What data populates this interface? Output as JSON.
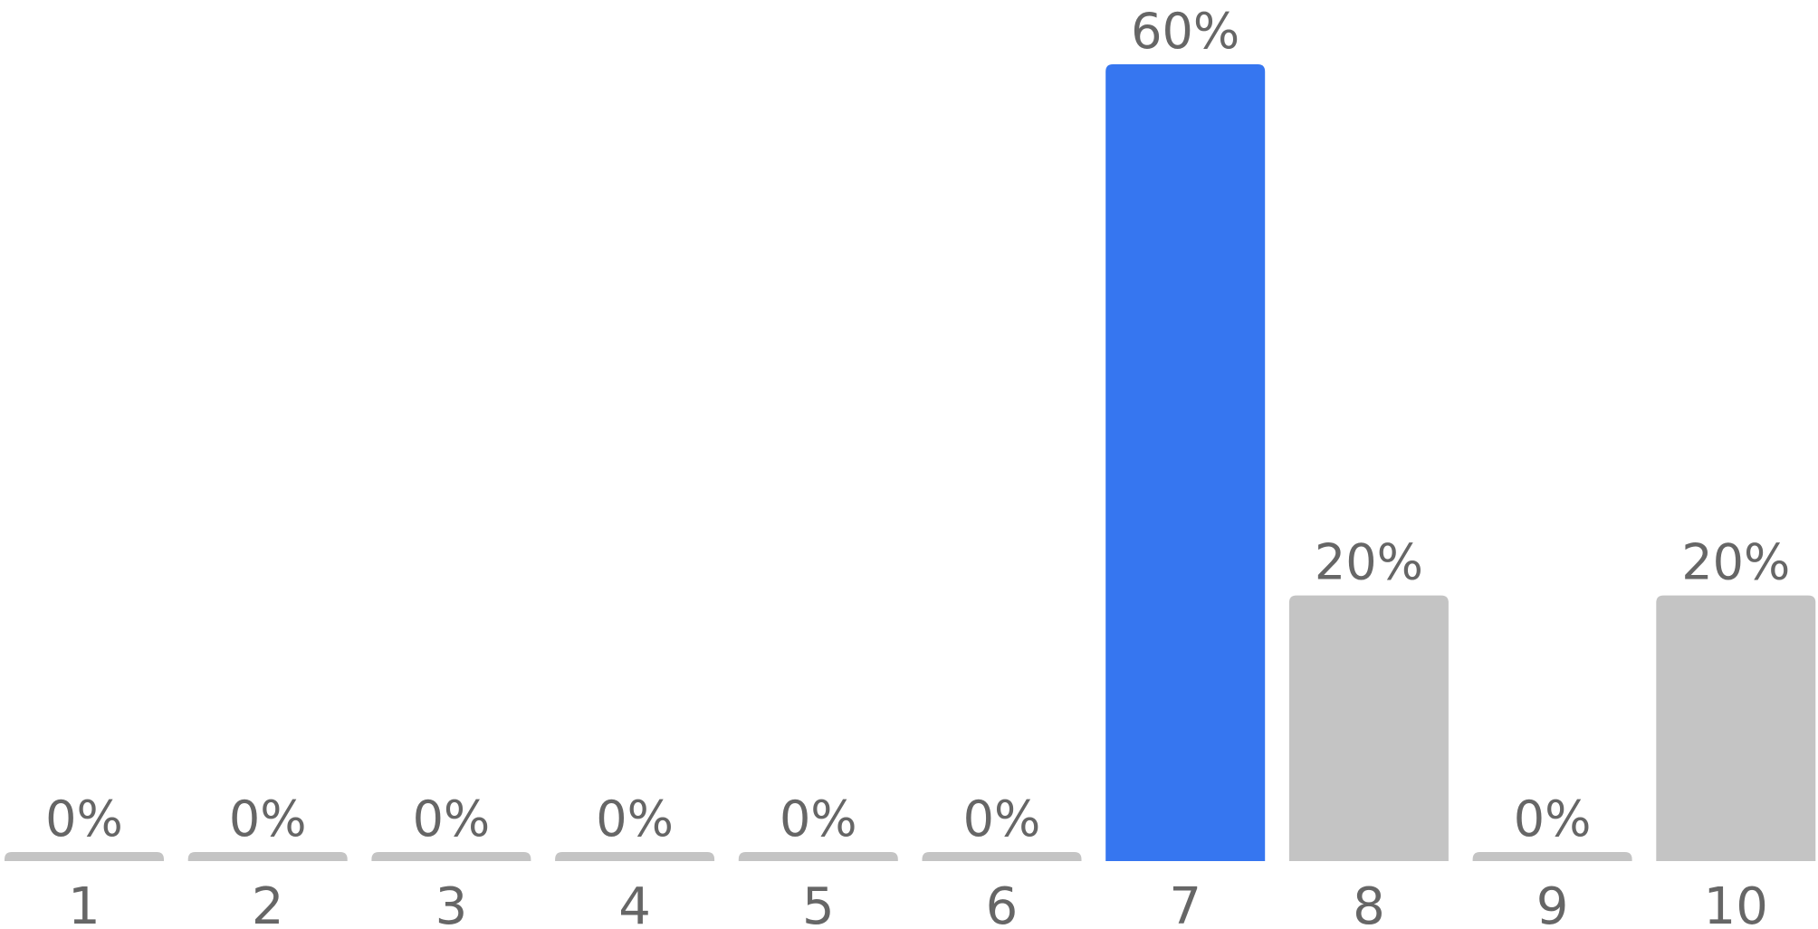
{
  "chart_data": {
    "type": "bar",
    "categories": [
      "1",
      "2",
      "3",
      "4",
      "5",
      "6",
      "7",
      "8",
      "9",
      "10"
    ],
    "values": [
      0,
      0,
      0,
      0,
      0,
      0,
      60,
      20,
      0,
      20
    ],
    "value_labels": [
      "0%",
      "0%",
      "0%",
      "0%",
      "0%",
      "0%",
      "60%",
      "20%",
      "0%",
      "20%"
    ],
    "highlight_index": 6,
    "title": "",
    "xlabel": "",
    "ylabel": "",
    "ylim": [
      0,
      60
    ],
    "grid": false,
    "colors": {
      "highlight": "#3676f0",
      "default": "#c4c4c4",
      "text": "#666666"
    }
  }
}
